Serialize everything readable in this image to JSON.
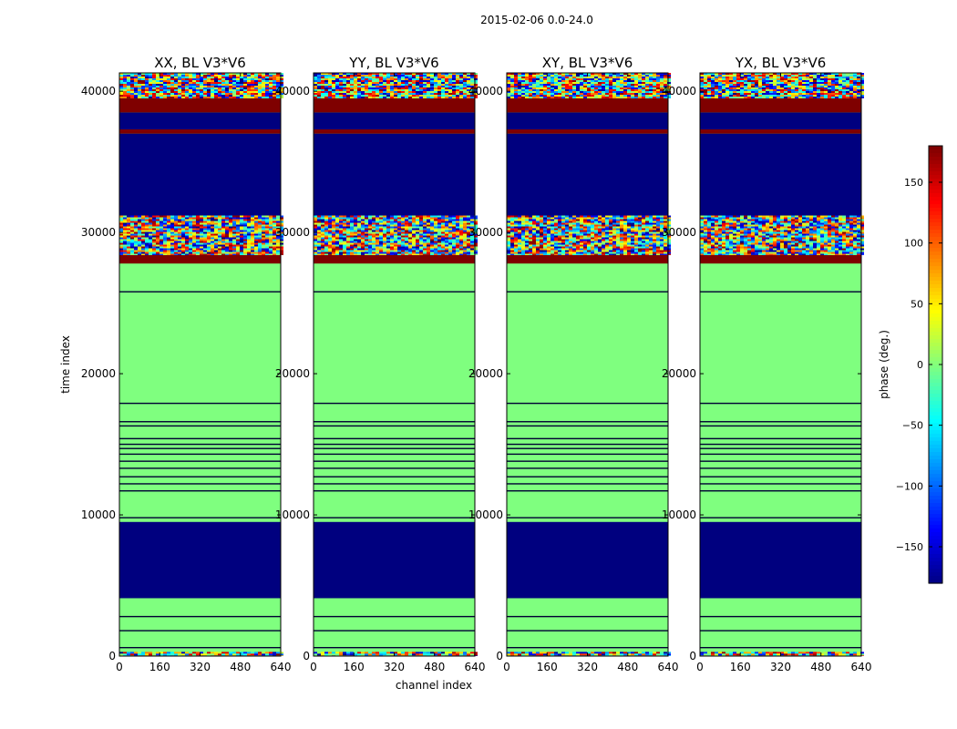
{
  "figure": {
    "suptitle": "2015-02-06 0.0-24.0",
    "xlabel": "channel index",
    "ylabel": "time index"
  },
  "chart_data": [
    {
      "type": "heatmap",
      "title": "XX, BL V3*V6",
      "xlim": [
        0,
        640
      ],
      "ylim": [
        0,
        41300
      ],
      "xticks": [
        0,
        160,
        320,
        480,
        640
      ],
      "yticks": [
        0,
        10000,
        20000,
        30000,
        40000
      ],
      "value_label": "phase (deg.)",
      "value_range": [
        -180,
        180
      ]
    },
    {
      "type": "heatmap",
      "title": "YY, BL V3*V6",
      "xlim": [
        0,
        640
      ],
      "ylim": [
        0,
        41300
      ],
      "xticks": [
        0,
        160,
        320,
        480,
        640
      ],
      "yticks": [
        0,
        10000,
        20000,
        30000,
        40000
      ],
      "value_label": "phase (deg.)",
      "value_range": [
        -180,
        180
      ]
    },
    {
      "type": "heatmap",
      "title": "XY, BL V3*V6",
      "xlim": [
        0,
        640
      ],
      "ylim": [
        0,
        41300
      ],
      "xticks": [
        0,
        160,
        320,
        480,
        640
      ],
      "yticks": [
        0,
        10000,
        20000,
        30000,
        40000
      ],
      "value_label": "phase (deg.)",
      "value_range": [
        -180,
        180
      ]
    },
    {
      "type": "heatmap",
      "title": "YX, BL V3*V6",
      "xlim": [
        0,
        640
      ],
      "ylim": [
        0,
        41300
      ],
      "xticks": [
        0,
        160,
        320,
        480,
        640
      ],
      "yticks": [
        0,
        10000,
        20000,
        30000,
        40000
      ],
      "value_label": "phase (deg.)",
      "value_range": [
        -180,
        180
      ]
    }
  ],
  "time_bands": [
    {
      "from": 0,
      "to": 300,
      "kind": "noise"
    },
    {
      "from": 300,
      "to": 4100,
      "kind": "zero"
    },
    {
      "from": 4100,
      "to": 9500,
      "kind": "flagged"
    },
    {
      "from": 9500,
      "to": 27800,
      "kind": "zero"
    },
    {
      "from": 27800,
      "to": 28400,
      "kind": "band180"
    },
    {
      "from": 28400,
      "to": 31200,
      "kind": "noise"
    },
    {
      "from": 31200,
      "to": 37000,
      "kind": "flagged"
    },
    {
      "from": 37000,
      "to": 37300,
      "kind": "band180"
    },
    {
      "from": 37300,
      "to": 38500,
      "kind": "flagged"
    },
    {
      "from": 38500,
      "to": 39500,
      "kind": "band180"
    },
    {
      "from": 39500,
      "to": 41300,
      "kind": "noise"
    }
  ],
  "time_lines": [
    600,
    1800,
    2800,
    9800,
    11700,
    12200,
    12700,
    13300,
    13800,
    14300,
    14700,
    15000,
    15400,
    16300,
    16600,
    17900,
    25800
  ],
  "colorbar": {
    "label": "phase (deg.)",
    "min": -180,
    "max": 180,
    "ticks": [
      -150,
      -100,
      -50,
      0,
      50,
      100,
      150
    ],
    "colors": [
      "#00007f",
      "#0000ff",
      "#007fff",
      "#00ffff",
      "#7fff7f",
      "#ffff00",
      "#ff7f00",
      "#ff0000",
      "#7f0000"
    ]
  }
}
